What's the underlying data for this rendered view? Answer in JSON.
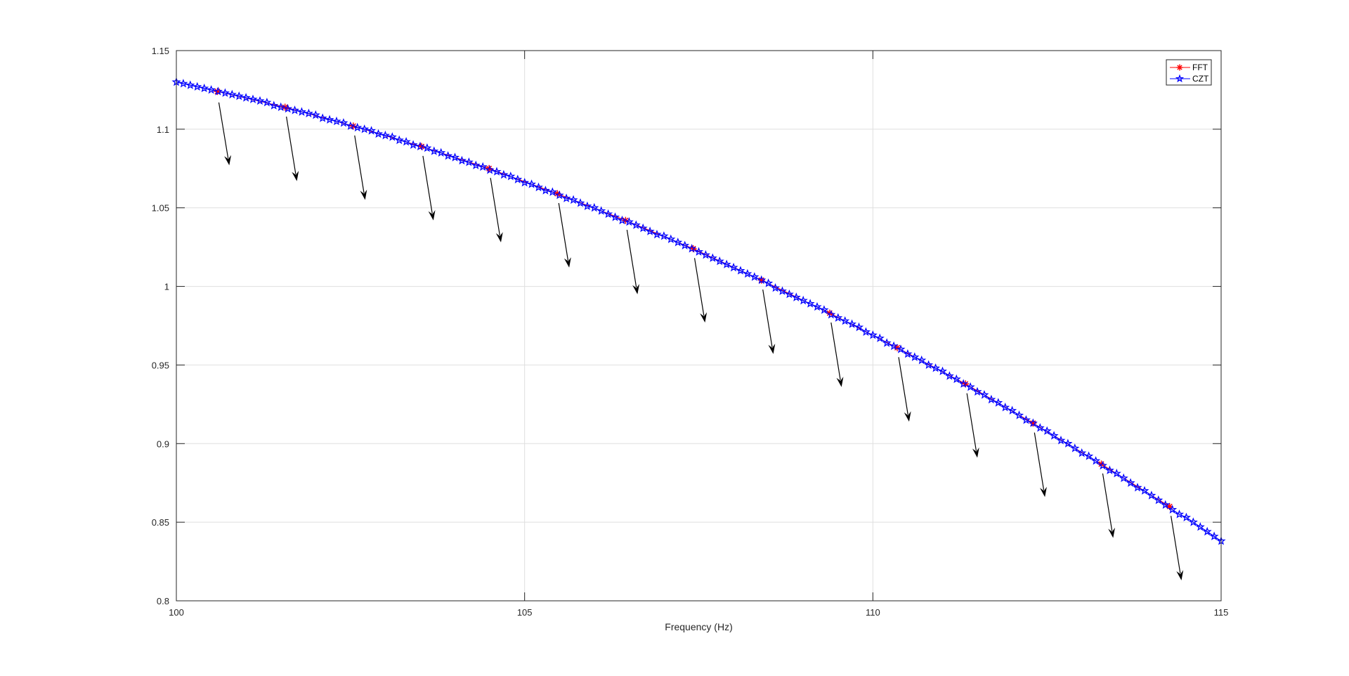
{
  "chart_data": {
    "type": "line",
    "title": "",
    "xlabel": "Frequency (Hz)",
    "ylabel": "",
    "xlim": [
      100,
      115
    ],
    "ylim": [
      0.8,
      1.15
    ],
    "xticks": [
      100,
      105,
      110,
      115
    ],
    "xtick_labels": [
      "100",
      "105",
      "110",
      "115"
    ],
    "yticks": [
      0.8,
      0.85,
      0.9,
      0.95,
      1,
      1.05,
      1.1,
      1.15
    ],
    "ytick_labels": [
      "0.8",
      "0.85",
      "0.9",
      "0.95",
      "1",
      "1.05",
      "1.1",
      "1.15"
    ],
    "grid": true,
    "legend_placement": "top-right",
    "series": [
      {
        "name": "FFT",
        "color": "#ff0000",
        "marker": "asterisk",
        "x": [
          100.59,
          101.56,
          102.54,
          103.52,
          104.49,
          105.47,
          106.45,
          107.42,
          108.4,
          109.38,
          110.35,
          111.33,
          112.3,
          113.28,
          114.26
        ],
        "y": [
          1.124,
          1.114,
          1.102,
          1.089,
          1.075,
          1.059,
          1.042,
          1.024,
          1.004,
          0.983,
          0.961,
          0.938,
          0.913,
          0.887,
          0.86
        ]
      },
      {
        "name": "CZT",
        "color": "#0000ff",
        "marker": "pentagram",
        "x_start": 100,
        "x_step": 0.1,
        "y": [
          1.13,
          1.129,
          1.128,
          1.127,
          1.126,
          1.125,
          1.124,
          1.123,
          1.122,
          1.121,
          1.12,
          1.119,
          1.118,
          1.117,
          1.115,
          1.114,
          1.113,
          1.112,
          1.111,
          1.11,
          1.109,
          1.107,
          1.106,
          1.105,
          1.104,
          1.102,
          1.101,
          1.1,
          1.099,
          1.097,
          1.096,
          1.095,
          1.093,
          1.092,
          1.09,
          1.089,
          1.088,
          1.086,
          1.085,
          1.083,
          1.082,
          1.08,
          1.079,
          1.077,
          1.076,
          1.074,
          1.073,
          1.071,
          1.07,
          1.068,
          1.066,
          1.065,
          1.063,
          1.061,
          1.06,
          1.058,
          1.056,
          1.055,
          1.053,
          1.051,
          1.05,
          1.048,
          1.046,
          1.044,
          1.042,
          1.041,
          1.039,
          1.037,
          1.035,
          1.033,
          1.032,
          1.03,
          1.028,
          1.026,
          1.024,
          1.022,
          1.02,
          1.018,
          1.016,
          1.014,
          1.012,
          1.01,
          1.008,
          1.006,
          1.004,
          1.002,
          0.999,
          0.997,
          0.995,
          0.993,
          0.991,
          0.989,
          0.987,
          0.985,
          0.982,
          0.98,
          0.978,
          0.976,
          0.974,
          0.971,
          0.969,
          0.967,
          0.964,
          0.962,
          0.96,
          0.957,
          0.955,
          0.953,
          0.95,
          0.948,
          0.946,
          0.943,
          0.941,
          0.938,
          0.936,
          0.933,
          0.931,
          0.928,
          0.926,
          0.923,
          0.921,
          0.918,
          0.915,
          0.913,
          0.91,
          0.908,
          0.905,
          0.902,
          0.9,
          0.897,
          0.894,
          0.892,
          0.889,
          0.886,
          0.883,
          0.881,
          0.878,
          0.875,
          0.872,
          0.87,
          0.867,
          0.864,
          0.861,
          0.858,
          0.855,
          0.853,
          0.85,
          0.847,
          0.844,
          0.841,
          0.838
        ]
      }
    ],
    "annotations": {
      "arrow_color": "#000000",
      "arrows": [
        {
          "from": [
            100.61,
            1.117
          ],
          "to": [
            100.76,
            1.077
          ]
        },
        {
          "from": [
            101.58,
            1.108
          ],
          "to": [
            101.73,
            1.067
          ]
        },
        {
          "from": [
            102.56,
            1.096
          ],
          "to": [
            102.71,
            1.055
          ]
        },
        {
          "from": [
            103.54,
            1.083
          ],
          "to": [
            103.69,
            1.042
          ]
        },
        {
          "from": [
            104.51,
            1.069
          ],
          "to": [
            104.66,
            1.028
          ]
        },
        {
          "from": [
            105.49,
            1.053
          ],
          "to": [
            105.64,
            1.012
          ]
        },
        {
          "from": [
            106.47,
            1.036
          ],
          "to": [
            106.62,
            0.995
          ]
        },
        {
          "from": [
            107.44,
            1.018
          ],
          "to": [
            107.59,
            0.977
          ]
        },
        {
          "from": [
            108.42,
            0.998
          ],
          "to": [
            108.57,
            0.957
          ]
        },
        {
          "from": [
            109.4,
            0.977
          ],
          "to": [
            109.55,
            0.936
          ]
        },
        {
          "from": [
            110.37,
            0.955
          ],
          "to": [
            110.52,
            0.914
          ]
        },
        {
          "from": [
            111.35,
            0.932
          ],
          "to": [
            111.5,
            0.891
          ]
        },
        {
          "from": [
            112.32,
            0.907
          ],
          "to": [
            112.47,
            0.866
          ]
        },
        {
          "from": [
            113.3,
            0.881
          ],
          "to": [
            113.45,
            0.84
          ]
        },
        {
          "from": [
            114.28,
            0.854
          ],
          "to": [
            114.43,
            0.813
          ]
        }
      ]
    }
  }
}
